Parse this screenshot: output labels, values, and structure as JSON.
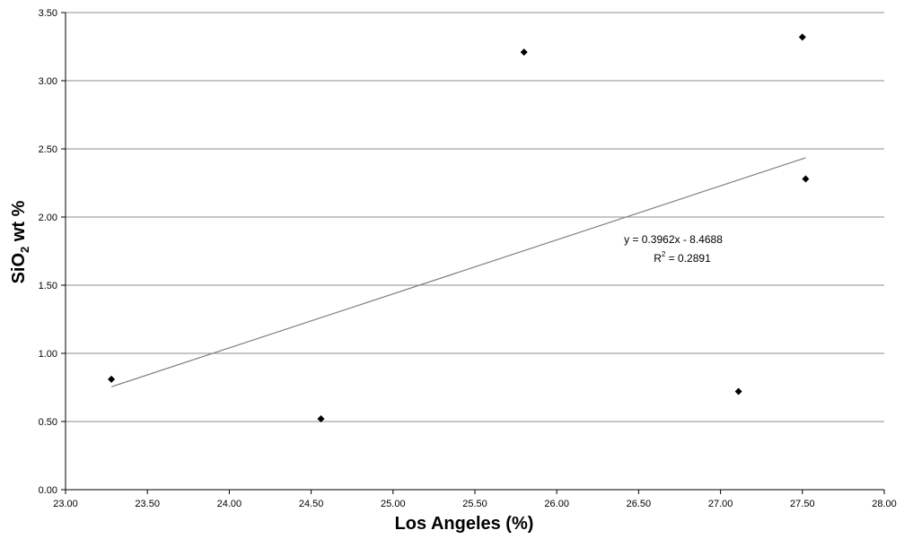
{
  "chart_data": {
    "type": "scatter",
    "xlabel": "Los Angeles (%)",
    "ylabel_parts": [
      "SiO",
      "2",
      " wt %"
    ],
    "xlim": [
      23.0,
      28.0
    ],
    "ylim": [
      0.0,
      3.5
    ],
    "xticks": [
      "23.00",
      "23.50",
      "24.00",
      "24.50",
      "25.00",
      "25.50",
      "26.00",
      "26.50",
      "27.00",
      "27.50",
      "28.00"
    ],
    "yticks": [
      "0.00",
      "0.50",
      "1.00",
      "1.50",
      "2.00",
      "2.50",
      "3.00",
      "3.50"
    ],
    "grid": "horizontal",
    "series": [
      {
        "points": [
          {
            "x": 23.28,
            "y": 0.81
          },
          {
            "x": 24.56,
            "y": 0.52
          },
          {
            "x": 25.8,
            "y": 3.21
          },
          {
            "x": 27.11,
            "y": 0.72
          },
          {
            "x": 27.5,
            "y": 3.32
          },
          {
            "x": 27.52,
            "y": 2.28
          }
        ]
      }
    ],
    "trendline": {
      "slope": 0.3962,
      "intercept": -8.4688,
      "x_range": [
        23.28,
        27.52
      ],
      "equation_label": "y = 0.3962x - 8.4688",
      "r2_parts": [
        "R",
        "2",
        " = 0.2891"
      ]
    }
  }
}
